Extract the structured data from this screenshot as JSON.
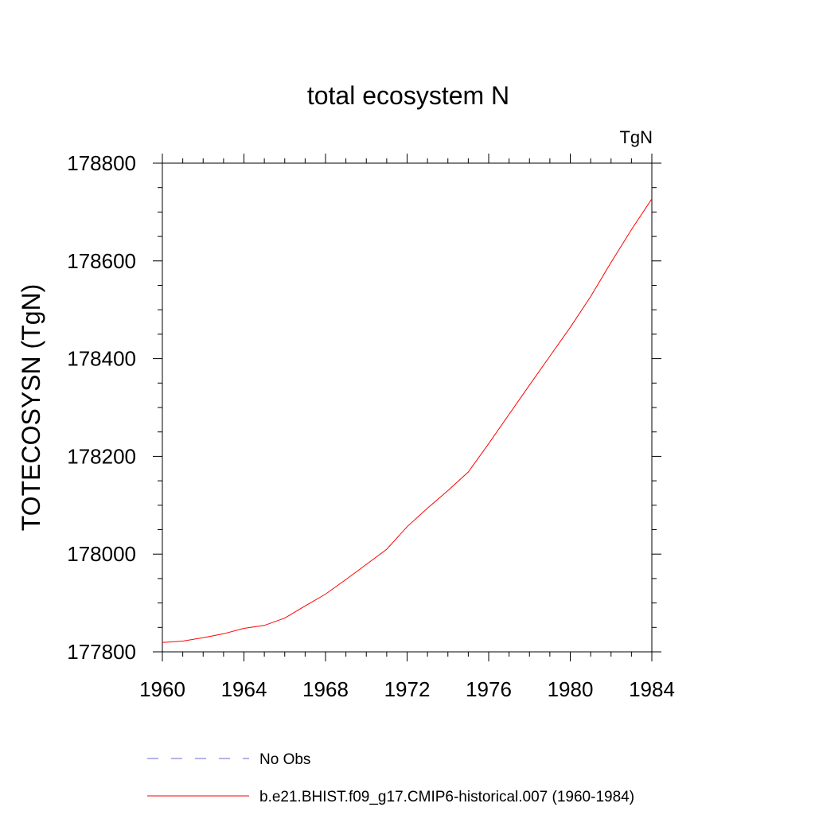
{
  "chart_data": {
    "type": "line",
    "title": "total ecosystem N",
    "units_label": "TgN",
    "ylabel": "TOTECOSYSN  (TgN)",
    "xlabel": "",
    "xlim": [
      1960,
      1984
    ],
    "ylim": [
      177800,
      178800
    ],
    "x_ticks": [
      1960,
      1964,
      1968,
      1972,
      1976,
      1980,
      1984
    ],
    "x_tick_labels": [
      "1960",
      "1964",
      "1968",
      "1972",
      "1976",
      "1980",
      "1984"
    ],
    "y_ticks": [
      177800,
      178000,
      178200,
      178400,
      178600,
      178800
    ],
    "y_tick_labels": [
      "177800",
      "178000",
      "178200",
      "178400",
      "178600",
      "178800"
    ],
    "grid": false,
    "legend_position": "bottom",
    "series": [
      {
        "name": "b.e21.BHIST.f09_g17.CMIP6-historical.007 (1960-1984)",
        "color": "#ff0000",
        "dash": "solid",
        "x": [
          1960,
          1961,
          1962,
          1963,
          1964,
          1965,
          1966,
          1967,
          1968,
          1969,
          1970,
          1971,
          1972,
          1973,
          1974,
          1975,
          1976,
          1977,
          1978,
          1979,
          1980,
          1981,
          1982,
          1983,
          1984
        ],
        "values": [
          177819,
          177822,
          177829,
          177837,
          177848,
          177854,
          177869,
          177894,
          177918,
          177948,
          177979,
          178010,
          178056,
          178094,
          178130,
          178168,
          178226,
          178286,
          178346,
          178405,
          178464,
          178527,
          178597,
          178664,
          178727
        ]
      }
    ],
    "legend": [
      {
        "label": "No Obs",
        "color": "#6a6ad0",
        "dash": "dashed"
      },
      {
        "label": "b.e21.BHIST.f09_g17.CMIP6-historical.007 (1960-1984)",
        "color": "#ff0000",
        "dash": "solid"
      }
    ]
  }
}
